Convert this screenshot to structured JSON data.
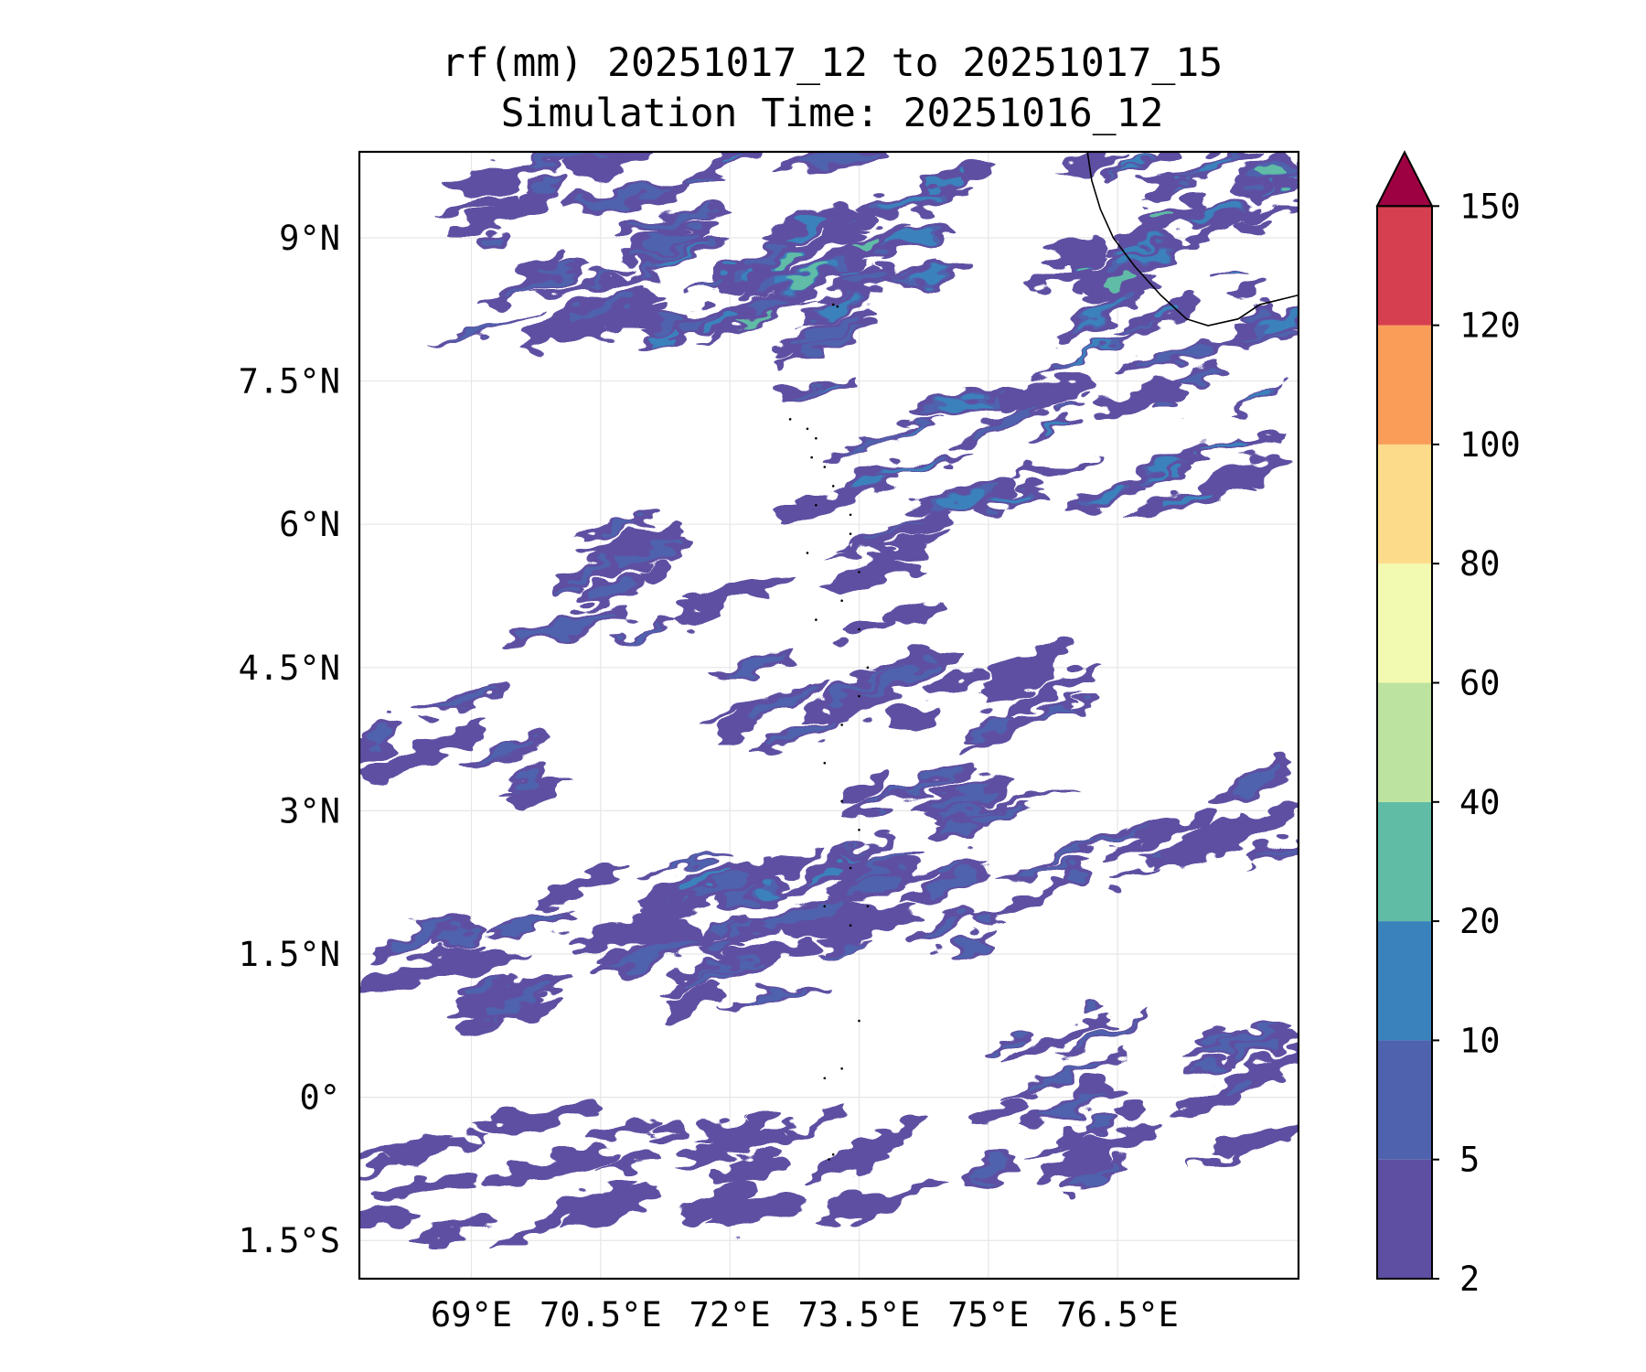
{
  "title": {
    "line1": "rf(mm) 20251017_12 to 20251017_15",
    "line2": "Simulation Time: 20251016_12"
  },
  "map": {
    "lon_range": [
      67.7,
      78.6
    ],
    "lat_range": [
      -1.9,
      9.9
    ],
    "lon_ticks": [
      69,
      70.5,
      72,
      73.5,
      75,
      76.5
    ],
    "lon_tick_labels": [
      "69°E",
      "70.5°E",
      "72°E",
      "73.5°E",
      "75°E",
      "76.5°E"
    ],
    "lat_ticks": [
      9,
      7.5,
      6,
      4.5,
      3,
      1.5,
      0,
      -1.5
    ],
    "lat_tick_labels": [
      "9°N",
      "7.5°N",
      "6°N",
      "4.5°N",
      "3°N",
      "1.5°N",
      "0°",
      "1.5°S"
    ],
    "grid": true,
    "field": "rainfall accumulation (mm)",
    "rain_bands": [
      {
        "lon": [
          70.2,
          75.5
        ],
        "lat": [
          1.4,
          2.6
        ],
        "level": 1
      },
      {
        "lon": [
          67.7,
          73.5
        ],
        "lat": [
          0.9,
          1.8
        ],
        "level": 1
      },
      {
        "lon": [
          73.5,
          78.6
        ],
        "lat": [
          2.2,
          3.4
        ],
        "level": 1
      },
      {
        "lon": [
          71.5,
          74.8
        ],
        "lat": [
          1.8,
          2.4
        ],
        "level": 2
      },
      {
        "lon": [
          70.0,
          74.5
        ],
        "lat": [
          4.8,
          6.0
        ],
        "level": 1
      },
      {
        "lon": [
          72.0,
          77.0
        ],
        "lat": [
          3.8,
          4.8
        ],
        "level": 1
      },
      {
        "lon": [
          73.0,
          78.6
        ],
        "lat": [
          6.2,
          7.4
        ],
        "level": 2
      },
      {
        "lon": [
          71.0,
          74.6
        ],
        "lat": [
          7.8,
          10.0
        ],
        "level": 2
      },
      {
        "lon": [
          72.0,
          73.8
        ],
        "lat": [
          8.0,
          9.0
        ],
        "level": 3
      },
      {
        "lon": [
          75.5,
          78.6
        ],
        "lat": [
          7.5,
          10.0
        ],
        "level": 2
      },
      {
        "lon": [
          76.0,
          78.6
        ],
        "lat": [
          8.5,
          9.8
        ],
        "level": 3
      },
      {
        "lon": [
          75.0,
          78.6
        ],
        "lat": [
          -0.9,
          0.9
        ],
        "level": 1
      },
      {
        "lon": [
          67.7,
          74.0
        ],
        "lat": [
          -1.4,
          -0.2
        ],
        "level": 0
      },
      {
        "lon": [
          69.0,
          71.8
        ],
        "lat": [
          8.0,
          9.9
        ],
        "level": 1
      },
      {
        "lon": [
          67.7,
          70.0
        ],
        "lat": [
          3.0,
          4.2
        ],
        "level": 1
      }
    ]
  },
  "colorbar": {
    "levels": [
      2,
      5,
      10,
      20,
      40,
      60,
      80,
      100,
      120,
      150
    ],
    "tick_labels": [
      "2",
      "5",
      "10",
      "20",
      "40",
      "60",
      "80",
      "100",
      "120",
      "150"
    ],
    "colors": [
      "#5e4fa2",
      "#4f62ad",
      "#3a82bc",
      "#61bca6",
      "#bde3a0",
      "#f2f9b0",
      "#fcdc8b",
      "#f99d59",
      "#d63f4f",
      "#9e0142"
    ],
    "extend": "max"
  }
}
